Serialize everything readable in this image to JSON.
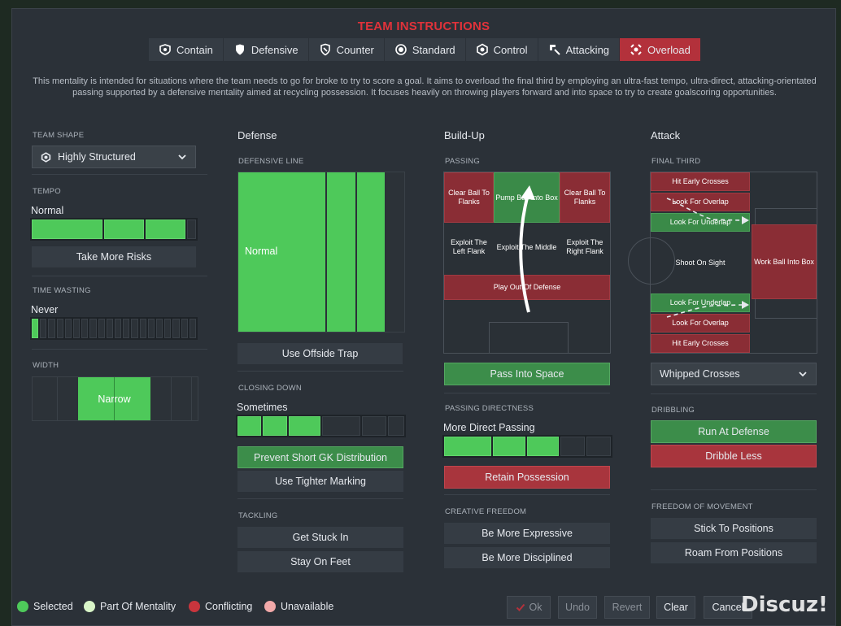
{
  "title": "TEAM INSTRUCTIONS",
  "tabs": [
    {
      "label": "Contain",
      "icon": "contain-icon"
    },
    {
      "label": "Defensive",
      "icon": "shield-icon"
    },
    {
      "label": "Counter",
      "icon": "counter-icon"
    },
    {
      "label": "Standard",
      "icon": "standard-icon"
    },
    {
      "label": "Control",
      "icon": "control-icon"
    },
    {
      "label": "Attacking",
      "icon": "attacking-icon"
    },
    {
      "label": "Overload",
      "icon": "overload-icon",
      "active": true
    }
  ],
  "description": "This mentality is intended for situations where the team needs to go for broke to try to score a goal. It aims to overload the final third by employing an ultra-fast tempo, ultra-direct, attacking-orientated passing supported by a defensive mentality aimed at recycling possession. It focuses heavily on throwing players forward and into space to try to create goalscoring opportunities.",
  "left": {
    "team_shape_label": "TEAM SHAPE",
    "team_shape_value": "Highly Structured",
    "tempo_label": "TEMPO",
    "tempo_value": "Normal",
    "tempo_level": 3,
    "tempo_max": 4,
    "take_more_risks": "Take More Risks",
    "time_wasting_label": "TIME WASTING",
    "time_wasting_value": "Never",
    "time_wasting_level": 1,
    "time_wasting_max": 20,
    "width_label": "WIDTH",
    "width_value": "Narrow"
  },
  "defense": {
    "heading": "Defense",
    "defensive_line_label": "DEFENSIVE LINE",
    "defensive_line_value": "Normal",
    "use_offside_trap": "Use Offside Trap",
    "closing_down_label": "CLOSING DOWN",
    "closing_down_value": "Sometimes",
    "closing_down_level": 3,
    "closing_down_max": 6,
    "prevent_short_gk": "Prevent Short GK Distribution",
    "use_tighter_marking": "Use Tighter Marking",
    "tackling_label": "TACKLING",
    "get_stuck_in": "Get Stuck In",
    "stay_on_feet": "Stay On Feet"
  },
  "buildup": {
    "heading": "Build-Up",
    "passing_label": "PASSING",
    "cells": {
      "clear_left": "Clear Ball To Flanks",
      "pump_ball": "Pump Ball Into Box",
      "clear_right": "Clear Ball To Flanks",
      "exploit_left": "Exploit The Left Flank",
      "exploit_middle": "Exploit The Middle",
      "exploit_right": "Exploit The Right Flank",
      "play_out": "Play Out Of Defense"
    },
    "pass_into_space": "Pass Into Space",
    "passing_directness_label": "PASSING DIRECTNESS",
    "passing_directness_value": "More Direct Passing",
    "passing_directness_level": 3,
    "passing_directness_max": 5,
    "retain_possession": "Retain Possession",
    "creative_freedom_label": "CREATIVE FREEDOM",
    "be_more_expressive": "Be More Expressive",
    "be_more_disciplined": "Be More Disciplined"
  },
  "attack": {
    "heading": "Attack",
    "final_third_label": "FINAL THIRD",
    "cells": {
      "hit_early_top": "Hit Early Crosses",
      "overlap_top": "Look For Overlap",
      "underlap_top": "Look For Underlap",
      "shoot_on_sight": "Shoot On Sight",
      "work_ball": "Work Ball Into Box",
      "underlap_bottom": "Look For Underlap",
      "overlap_bottom": "Look For Overlap",
      "hit_early_bottom": "Hit Early Crosses"
    },
    "crossing_value": "Whipped Crosses",
    "dribbling_label": "DRIBBLING",
    "run_at_defense": "Run At Defense",
    "dribble_less": "Dribble Less",
    "freedom_label": "FREEDOM OF MOVEMENT",
    "stick_to_positions": "Stick To Positions",
    "roam_from_positions": "Roam From Positions"
  },
  "legend": [
    {
      "label": "Selected",
      "color": "#4ec95a"
    },
    {
      "label": "Part Of Mentality",
      "color": "#d9f5c8"
    },
    {
      "label": "Conflicting",
      "color": "#c9353d"
    },
    {
      "label": "Unavailable",
      "color": "#f2a9a9"
    }
  ],
  "footer": {
    "ok": "Ok",
    "undo": "Undo",
    "revert": "Revert",
    "clear": "Clear",
    "cancel": "Cancel",
    "watermark": "Discuz!"
  },
  "colors": {
    "accent": "#e0323a",
    "selected": "#4ec95a",
    "conflict": "#a8353d"
  }
}
